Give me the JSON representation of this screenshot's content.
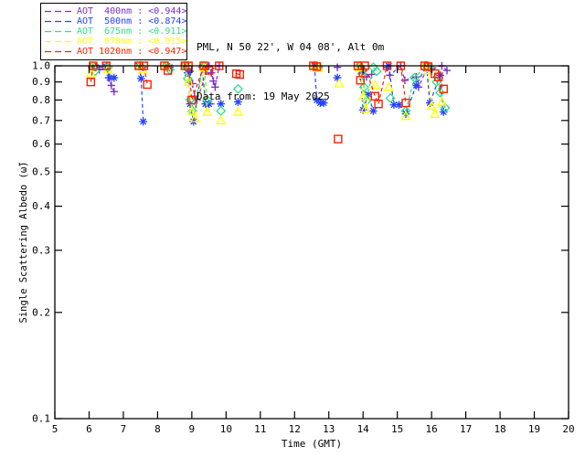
{
  "header": {
    "site_line": "PML, N 50 22', W 04 08', Alt 0m",
    "date_line": "Data from: 19 May 2025"
  },
  "chart_data": {
    "type": "scatter",
    "title": "",
    "xlabel": "Time (GMT)",
    "ylabel": "Single Scattering Albedo (ω̃)",
    "xlim": [
      5,
      20
    ],
    "ylim": [
      0.1,
      1.0
    ],
    "yscale": "log",
    "x_ticks": [
      5,
      6,
      7,
      8,
      9,
      10,
      11,
      12,
      13,
      14,
      15,
      16,
      17,
      18,
      19,
      20
    ],
    "y_ticks": [
      1.0,
      0.9,
      0.8,
      0.7,
      0.6,
      0.5,
      0.4,
      0.3,
      0.2,
      0.1
    ],
    "grid": false,
    "legend_position": "top-left",
    "line_style": "dashed",
    "series": [
      {
        "name": "AOT 400nm",
        "legend_label": "AOT  400nm : <0.944>",
        "mean": 0.944,
        "color": "#7B2FC4",
        "marker": "plus",
        "points": [
          [
            6.1,
            1.0
          ],
          [
            6.17,
            0.99
          ],
          [
            6.3,
            0.975
          ],
          [
            6.5,
            0.995
          ],
          [
            6.57,
            0.925
          ],
          [
            6.65,
            0.88
          ],
          [
            6.73,
            0.845
          ],
          [
            7.5,
            1.0
          ],
          [
            7.57,
            0.99
          ],
          [
            8.2,
            1.0
          ],
          [
            8.3,
            0.99
          ],
          [
            8.85,
            1.0
          ],
          [
            8.95,
            0.965
          ],
          [
            9.02,
            0.89
          ],
          [
            9.08,
            0.82
          ],
          [
            9.15,
            0.8
          ],
          [
            9.5,
            1.0
          ],
          [
            9.57,
            0.955
          ],
          [
            9.63,
            0.905
          ],
          [
            9.68,
            0.87
          ],
          [
            9.8,
            1.0
          ],
          [
            12.6,
            1.0
          ],
          [
            12.68,
            0.99
          ],
          [
            13.25,
            0.99
          ],
          [
            13.9,
            1.0
          ],
          [
            14.0,
            0.965
          ],
          [
            14.1,
            0.93
          ],
          [
            14.25,
            0.945
          ],
          [
            14.7,
            0.99
          ],
          [
            14.78,
            0.94
          ],
          [
            15.1,
            1.0
          ],
          [
            15.22,
            0.91
          ],
          [
            15.55,
            0.93
          ],
          [
            15.62,
            0.87
          ],
          [
            15.9,
            1.0
          ],
          [
            16.0,
            0.98
          ],
          [
            16.3,
            1.0
          ],
          [
            16.45,
            0.97
          ]
        ]
      },
      {
        "name": "AOT 500nm",
        "legend_label": "AOT  500nm : <0.874>",
        "mean": 0.874,
        "color": "#2442FF",
        "marker": "asterisk",
        "points": [
          [
            6.1,
            1.0
          ],
          [
            6.2,
            0.99
          ],
          [
            6.5,
            0.995
          ],
          [
            6.6,
            0.925
          ],
          [
            6.73,
            0.925
          ],
          [
            7.45,
            1.0
          ],
          [
            7.52,
            0.92
          ],
          [
            7.58,
            0.695
          ],
          [
            8.25,
            1.0
          ],
          [
            8.35,
            0.99
          ],
          [
            8.8,
            1.0
          ],
          [
            8.88,
            0.955
          ],
          [
            8.95,
            0.78
          ],
          [
            9.05,
            0.695
          ],
          [
            9.3,
            0.99
          ],
          [
            9.4,
            0.78
          ],
          [
            9.5,
            0.78
          ],
          [
            9.85,
            0.78
          ],
          [
            10.35,
            0.79
          ],
          [
            12.58,
            1.0
          ],
          [
            12.65,
            0.8
          ],
          [
            12.75,
            0.785
          ],
          [
            12.85,
            0.785
          ],
          [
            13.25,
            0.925
          ],
          [
            13.9,
            1.0
          ],
          [
            14.0,
            0.75
          ],
          [
            14.15,
            0.83
          ],
          [
            14.3,
            0.745
          ],
          [
            14.75,
            1.0
          ],
          [
            14.9,
            0.775
          ],
          [
            15.05,
            0.775
          ],
          [
            15.25,
            0.73
          ],
          [
            15.55,
            0.88
          ],
          [
            15.85,
            1.0
          ],
          [
            15.95,
            0.785
          ],
          [
            16.25,
            0.94
          ],
          [
            16.35,
            0.74
          ]
        ]
      },
      {
        "name": "AOT 675nm",
        "legend_label": "AOT  675nm : <0.911>",
        "mean": 0.911,
        "color": "#2EE08A",
        "marker": "diamond",
        "points": [
          [
            6.1,
            0.99
          ],
          [
            6.17,
            0.965
          ],
          [
            6.55,
            0.99
          ],
          [
            7.5,
            1.0
          ],
          [
            8.25,
            1.0
          ],
          [
            8.35,
            0.975
          ],
          [
            8.8,
            1.0
          ],
          [
            8.88,
            0.92
          ],
          [
            8.95,
            0.8
          ],
          [
            9.02,
            0.745
          ],
          [
            9.35,
            1.0
          ],
          [
            9.45,
            0.8
          ],
          [
            9.85,
            0.745
          ],
          [
            10.35,
            0.86
          ],
          [
            12.6,
            1.0
          ],
          [
            12.7,
            0.99
          ],
          [
            13.9,
            1.0
          ],
          [
            13.97,
            0.95
          ],
          [
            14.03,
            0.87
          ],
          [
            14.1,
            0.795
          ],
          [
            14.3,
            0.99
          ],
          [
            14.4,
            0.965
          ],
          [
            14.8,
            0.81
          ],
          [
            15.25,
            0.745
          ],
          [
            15.5,
            0.925
          ],
          [
            15.85,
            1.0
          ],
          [
            15.95,
            0.99
          ],
          [
            16.15,
            0.9
          ],
          [
            16.25,
            0.84
          ],
          [
            16.4,
            0.76
          ]
        ]
      },
      {
        "name": "AOT 870nm",
        "legend_label": "AOT  870nm : <0.915>",
        "mean": 0.915,
        "color": "#FFFF00",
        "marker": "triangle",
        "points": [
          [
            6.05,
            0.95
          ],
          [
            6.12,
            0.995
          ],
          [
            6.55,
            0.975
          ],
          [
            7.5,
            1.0
          ],
          [
            7.57,
            0.975
          ],
          [
            8.25,
            0.995
          ],
          [
            8.8,
            1.0
          ],
          [
            8.9,
            0.9
          ],
          [
            9.0,
            0.745
          ],
          [
            9.1,
            0.71
          ],
          [
            9.35,
            0.99
          ],
          [
            9.45,
            0.74
          ],
          [
            9.85,
            0.7
          ],
          [
            10.35,
            0.74
          ],
          [
            12.6,
            1.0
          ],
          [
            12.7,
            0.985
          ],
          [
            13.3,
            0.89
          ],
          [
            13.9,
            0.99
          ],
          [
            14.0,
            0.82
          ],
          [
            14.07,
            0.755
          ],
          [
            14.35,
            0.88
          ],
          [
            14.75,
            0.87
          ],
          [
            15.25,
            0.72
          ],
          [
            15.8,
            1.0
          ],
          [
            15.9,
            0.97
          ],
          [
            16.0,
            0.77
          ],
          [
            16.1,
            0.73
          ],
          [
            16.3,
            0.79
          ]
        ]
      },
      {
        "name": "AOT 1020nm",
        "legend_label": "AOT 1020nm : <0.947>",
        "mean": 0.947,
        "color": "#FF2000",
        "marker": "square",
        "points": [
          [
            6.05,
            0.9
          ],
          [
            6.12,
            1.0
          ],
          [
            6.5,
            1.0
          ],
          [
            7.45,
            1.0
          ],
          [
            7.6,
            1.0
          ],
          [
            7.7,
            0.885
          ],
          [
            8.2,
            1.0
          ],
          [
            8.3,
            0.97
          ],
          [
            8.8,
            1.0
          ],
          [
            8.9,
            1.0
          ],
          [
            9.0,
            0.8
          ],
          [
            9.35,
            1.0
          ],
          [
            9.5,
            0.97
          ],
          [
            9.8,
            1.0
          ],
          [
            10.3,
            0.95
          ],
          [
            10.4,
            0.945
          ],
          [
            12.55,
            1.0
          ],
          [
            12.65,
            0.995
          ],
          [
            13.27,
            0.62
          ],
          [
            13.85,
            1.0
          ],
          [
            13.92,
            0.91
          ],
          [
            14.05,
            1.0
          ],
          [
            14.35,
            0.82
          ],
          [
            14.45,
            0.78
          ],
          [
            14.7,
            1.0
          ],
          [
            15.1,
            1.0
          ],
          [
            15.25,
            0.785
          ],
          [
            15.8,
            1.0
          ],
          [
            15.9,
            0.995
          ],
          [
            16.1,
            0.95
          ],
          [
            16.2,
            0.93
          ],
          [
            16.35,
            0.86
          ]
        ]
      }
    ]
  }
}
